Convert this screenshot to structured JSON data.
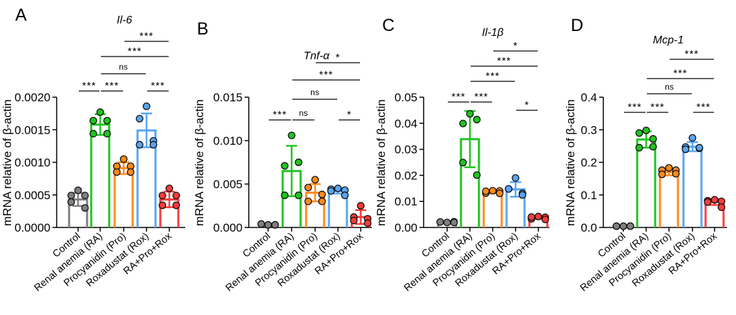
{
  "chart_data": [
    {
      "type": "bar",
      "panel": "A",
      "title": "Il-6",
      "ylabel": "mRNA relative of β-actin",
      "ylim": [
        0,
        0.002
      ],
      "yticks": [
        "0.0000",
        "0.0005",
        "0.0010",
        "0.0015",
        "0.0020"
      ],
      "yticks_values": [
        0,
        0.0005,
        0.001,
        0.0015,
        0.002
      ],
      "categories": [
        "Control",
        "Renal anemia (RA)",
        "Procyanidin (Pro)",
        "Roxadustat (Rox)",
        "RA+Pro+Rox"
      ],
      "colors": [
        "#7f7f7f",
        "#1fc41f",
        "#ff8a1c",
        "#57a5f3",
        "#fb3b3b"
      ],
      "means": [
        0.00043,
        0.00158,
        0.00091,
        0.00149,
        0.00043
      ],
      "sd": [
        0.0001,
        0.00016,
        9e-05,
        0.00026,
        0.00012
      ],
      "points": [
        [
          0.00057,
          0.00049,
          0.00049,
          0.00039,
          0.0003
        ],
        [
          0.00177,
          0.00164,
          0.00164,
          0.00144,
          0.00144
        ],
        [
          0.00105,
          0.00094,
          0.00094,
          0.00085,
          0.00085
        ],
        [
          0.00186,
          0.00167,
          0.00133,
          0.00127,
          0.00127
        ],
        [
          0.0006,
          0.00049,
          0.00049,
          0.00034,
          0.00034
        ]
      ],
      "comparisons": [
        {
          "from": 0,
          "to": 1,
          "tier": 0,
          "label": "***"
        },
        {
          "from": 1,
          "to": 2,
          "tier": 0,
          "label": "***"
        },
        {
          "from": 3,
          "to": 4,
          "tier": 0,
          "label": "***"
        },
        {
          "from": 1,
          "to": 3,
          "tier": 1,
          "label": "ns"
        },
        {
          "from": 1,
          "to": 4,
          "tier": 2,
          "label": "***"
        },
        {
          "from": 2,
          "to": 4,
          "tier": 3,
          "label": "***"
        }
      ]
    },
    {
      "type": "bar",
      "panel": "B",
      "title": "Tnf-α",
      "ylabel": "mRNA relative of β-actin",
      "ylim": [
        0,
        0.015
      ],
      "yticks": [
        "0.000",
        "0.005",
        "0.010",
        "0.015"
      ],
      "yticks_values": [
        0,
        0.005,
        0.01,
        0.015
      ],
      "categories": [
        "Control",
        "Renal anemia (RA)",
        "Procyanidin (Pro)",
        "Roxadustat (Rox)",
        "RA+Pro+Rox"
      ],
      "colors": [
        "#7f7f7f",
        "#1fc41f",
        "#ff8a1c",
        "#57a5f3",
        "#fb3b3b"
      ],
      "means": [
        0.0003,
        0.0065,
        0.004,
        0.0042,
        0.0012
      ],
      "sd": [
        0.0001,
        0.0029,
        0.001,
        0.0003,
        0.0008
      ],
      "points": [
        [
          0.0003,
          0.0004,
          0.0003,
          0.0004,
          0.0003
        ],
        [
          0.0106,
          0.0071,
          0.0075,
          0.0037,
          0.0037
        ],
        [
          0.0055,
          0.0046,
          0.0038,
          0.003,
          0.003
        ],
        [
          0.0045,
          0.0044,
          0.0043,
          0.0042,
          0.0037
        ],
        [
          0.0025,
          0.0012,
          0.001,
          0.0008,
          0.0005
        ]
      ],
      "comparisons": [
        {
          "from": 0,
          "to": 1,
          "tier": 0,
          "label": "***"
        },
        {
          "from": 1,
          "to": 2,
          "tier": 0,
          "label": "ns"
        },
        {
          "from": 3,
          "to": 4,
          "tier": 0,
          "label": "*"
        },
        {
          "from": 1,
          "to": 3,
          "tier": 1,
          "label": "ns"
        },
        {
          "from": 1,
          "to": 4,
          "tier": 2,
          "label": "***"
        },
        {
          "from": 2,
          "to": 4,
          "tier": 3,
          "label": "*"
        }
      ]
    },
    {
      "type": "bar",
      "panel": "C",
      "title": "Il-1β",
      "ylabel": "mRNA relative of β-actin",
      "ylim": [
        0,
        0.05
      ],
      "yticks": [
        "0.00",
        "0.01",
        "0.02",
        "0.03",
        "0.04",
        "0.05"
      ],
      "yticks_values": [
        0,
        0.01,
        0.02,
        0.03,
        0.04,
        0.05
      ],
      "categories": [
        "Control",
        "Renal anemia (RA)",
        "Procyanidin (Pro)",
        "Roxadustat (Rox)",
        "RA+Pro+Rox"
      ],
      "colors": [
        "#7f7f7f",
        "#1fc41f",
        "#ff8a1c",
        "#57a5f3",
        "#fb3b3b"
      ],
      "means": [
        0.002,
        0.0339,
        0.0136,
        0.0146,
        0.0037
      ],
      "sd": [
        0.0002,
        0.0108,
        0.0005,
        0.0028,
        0.0004
      ],
      "points": [
        [
          0.0019,
          0.0021,
          0.0022,
          0.0021,
          0.0019
        ],
        [
          0.0436,
          0.0399,
          0.0414,
          0.0249,
          0.0201
        ],
        [
          0.0141,
          0.0132,
          0.014,
          0.0139,
          0.0131
        ],
        [
          0.019,
          0.0148,
          0.0131,
          0.0148,
          0.0125
        ],
        [
          0.0042,
          0.0033,
          0.0039,
          0.004,
          0.0031
        ]
      ],
      "comparisons": [
        {
          "from": 0,
          "to": 1,
          "tier": 0,
          "label": "***"
        },
        {
          "from": 1,
          "to": 2,
          "tier": 0,
          "label": "***"
        },
        {
          "from": 3,
          "to": 4,
          "tier": -1,
          "label": "*"
        },
        {
          "from": 1,
          "to": 3,
          "tier": 1,
          "label": "***"
        },
        {
          "from": 1,
          "to": 4,
          "tier": 2,
          "label": "***"
        },
        {
          "from": 2,
          "to": 4,
          "tier": 3,
          "label": "*"
        }
      ]
    },
    {
      "type": "bar",
      "panel": "D",
      "title": "Mcp-1",
      "ylabel": "mRNA relative of β-actin",
      "ylim": [
        0,
        0.4
      ],
      "yticks": [
        "0.0",
        "0.1",
        "0.2",
        "0.3",
        "0.4"
      ],
      "yticks_values": [
        0,
        0.1,
        0.2,
        0.3,
        0.4
      ],
      "categories": [
        "Control",
        "Renal anemia (RA)",
        "Procyanidin (Pro)",
        "Roxadustat (Rox)",
        "RA+Pro+Rox"
      ],
      "colors": [
        "#7f7f7f",
        "#1fc41f",
        "#ff8a1c",
        "#57a5f3",
        "#fb3b3b"
      ],
      "means": [
        0.004,
        0.27,
        0.17,
        0.248,
        0.078
      ],
      "sd": [
        0.001,
        0.025,
        0.01,
        0.014,
        0.009
      ],
      "points": [
        [
          0.004,
          0.004,
          0.004,
          0.004,
          0.004
        ],
        [
          0.298,
          0.29,
          0.272,
          0.245,
          0.248
        ],
        [
          0.183,
          0.176,
          0.176,
          0.163,
          0.165
        ],
        [
          0.275,
          0.247,
          0.243,
          0.24,
          0.245
        ],
        [
          0.085,
          0.082,
          0.08,
          0.078,
          0.062
        ]
      ],
      "comparisons": [
        {
          "from": 0,
          "to": 1,
          "tier": 0,
          "label": "***"
        },
        {
          "from": 1,
          "to": 2,
          "tier": 0,
          "label": "***"
        },
        {
          "from": 3,
          "to": 4,
          "tier": 0,
          "label": "***"
        },
        {
          "from": 1,
          "to": 3,
          "tier": 1,
          "label": "ns"
        },
        {
          "from": 1,
          "to": 4,
          "tier": 2,
          "label": "***"
        },
        {
          "from": 2,
          "to": 4,
          "tier": 3,
          "label": "***"
        }
      ]
    }
  ]
}
